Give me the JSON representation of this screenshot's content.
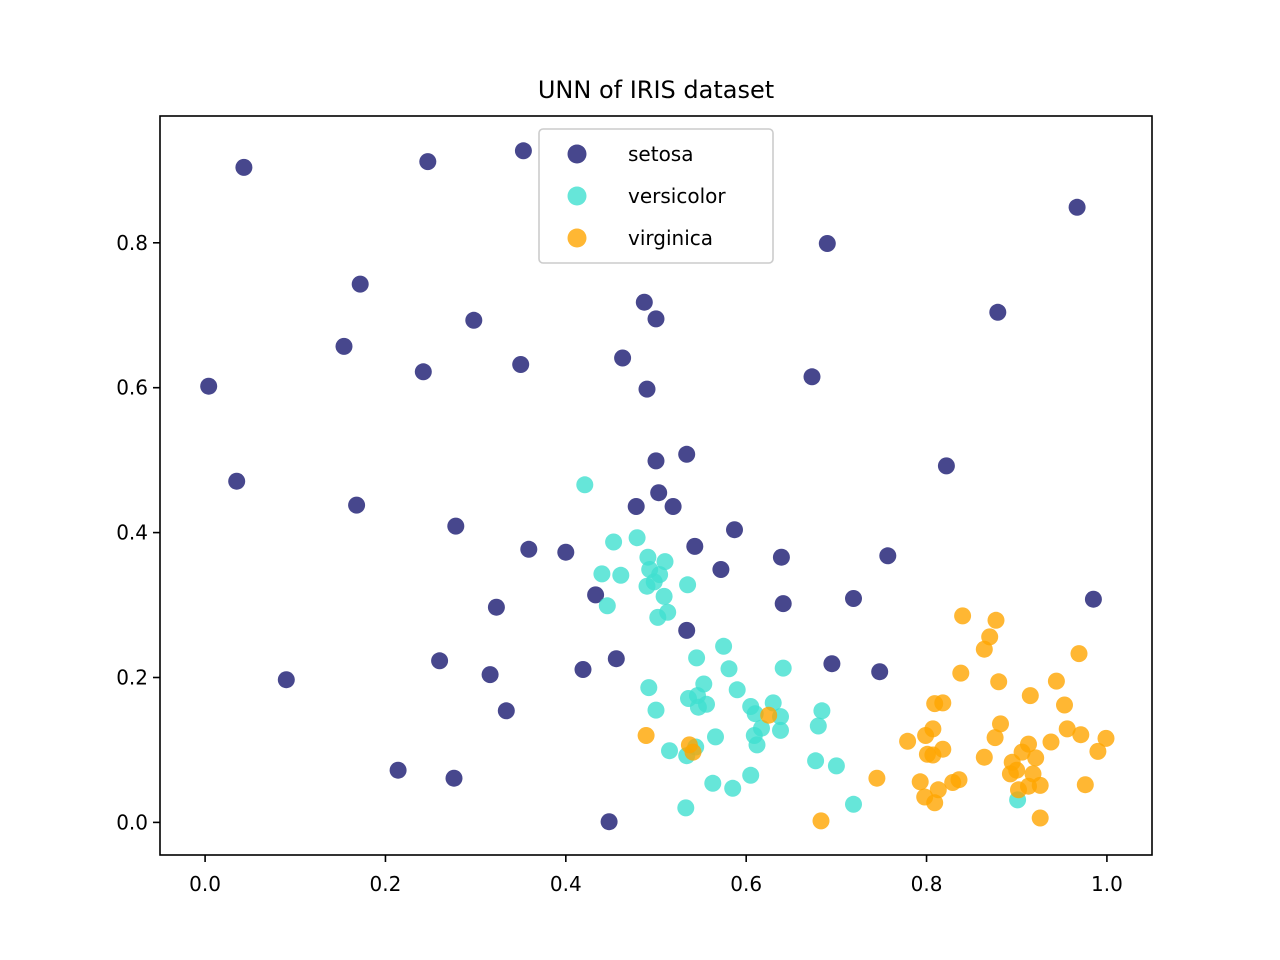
{
  "chart_data": {
    "type": "scatter",
    "title": "UNN of IRIS dataset",
    "xlabel": "",
    "ylabel": "",
    "xlim": [
      -0.05,
      1.05
    ],
    "ylim": [
      -0.045,
      0.975
    ],
    "xticks": [
      "0.0",
      "0.2",
      "0.4",
      "0.6",
      "0.8",
      "1.0"
    ],
    "yticks": [
      "0.0",
      "0.2",
      "0.4",
      "0.6",
      "0.8"
    ],
    "grid": false,
    "legend_position": "upper center",
    "series": [
      {
        "name": "setosa",
        "color": "#191970",
        "points": [
          [
            0.043,
            0.904
          ],
          [
            0.247,
            0.912
          ],
          [
            0.353,
            0.927
          ],
          [
            0.967,
            0.849
          ],
          [
            0.69,
            0.799
          ],
          [
            0.172,
            0.743
          ],
          [
            0.487,
            0.718
          ],
          [
            0.879,
            0.704
          ],
          [
            0.298,
            0.693
          ],
          [
            0.5,
            0.695
          ],
          [
            0.154,
            0.657
          ],
          [
            0.463,
            0.641
          ],
          [
            0.35,
            0.632
          ],
          [
            0.242,
            0.622
          ],
          [
            0.673,
            0.615
          ],
          [
            0.004,
            0.602
          ],
          [
            0.49,
            0.598
          ],
          [
            0.534,
            0.508
          ],
          [
            0.5,
            0.499
          ],
          [
            0.822,
            0.492
          ],
          [
            0.035,
            0.471
          ],
          [
            0.503,
            0.455
          ],
          [
            0.168,
            0.438
          ],
          [
            0.478,
            0.436
          ],
          [
            0.519,
            0.436
          ],
          [
            0.278,
            0.409
          ],
          [
            0.587,
            0.404
          ],
          [
            0.359,
            0.377
          ],
          [
            0.4,
            0.373
          ],
          [
            0.543,
            0.381
          ],
          [
            0.639,
            0.366
          ],
          [
            0.757,
            0.368
          ],
          [
            0.572,
            0.349
          ],
          [
            0.433,
            0.314
          ],
          [
            0.323,
            0.297
          ],
          [
            0.641,
            0.302
          ],
          [
            0.719,
            0.309
          ],
          [
            0.985,
            0.308
          ],
          [
            0.534,
            0.265
          ],
          [
            0.26,
            0.223
          ],
          [
            0.456,
            0.226
          ],
          [
            0.419,
            0.211
          ],
          [
            0.695,
            0.219
          ],
          [
            0.748,
            0.208
          ],
          [
            0.316,
            0.204
          ],
          [
            0.09,
            0.197
          ],
          [
            0.334,
            0.154
          ],
          [
            0.214,
            0.072
          ],
          [
            0.276,
            0.061
          ],
          [
            0.448,
            0.001
          ]
        ]
      },
      {
        "name": "versicolor",
        "color": "#40E0D0",
        "points": [
          [
            0.421,
            0.466
          ],
          [
            0.453,
            0.387
          ],
          [
            0.479,
            0.393
          ],
          [
            0.491,
            0.366
          ],
          [
            0.51,
            0.36
          ],
          [
            0.44,
            0.343
          ],
          [
            0.461,
            0.341
          ],
          [
            0.493,
            0.349
          ],
          [
            0.504,
            0.342
          ],
          [
            0.498,
            0.332
          ],
          [
            0.49,
            0.326
          ],
          [
            0.535,
            0.328
          ],
          [
            0.509,
            0.312
          ],
          [
            0.446,
            0.299
          ],
          [
            0.513,
            0.29
          ],
          [
            0.502,
            0.283
          ],
          [
            0.575,
            0.243
          ],
          [
            0.545,
            0.227
          ],
          [
            0.581,
            0.212
          ],
          [
            0.641,
            0.213
          ],
          [
            0.492,
            0.186
          ],
          [
            0.553,
            0.191
          ],
          [
            0.536,
            0.171
          ],
          [
            0.546,
            0.175
          ],
          [
            0.59,
            0.183
          ],
          [
            0.605,
            0.16
          ],
          [
            0.63,
            0.165
          ],
          [
            0.547,
            0.159
          ],
          [
            0.556,
            0.163
          ],
          [
            0.5,
            0.155
          ],
          [
            0.684,
            0.154
          ],
          [
            0.638,
            0.146
          ],
          [
            0.61,
            0.15
          ],
          [
            0.68,
            0.133
          ],
          [
            0.617,
            0.13
          ],
          [
            0.638,
            0.127
          ],
          [
            0.566,
            0.118
          ],
          [
            0.609,
            0.12
          ],
          [
            0.612,
            0.107
          ],
          [
            0.515,
            0.099
          ],
          [
            0.534,
            0.092
          ],
          [
            0.677,
            0.085
          ],
          [
            0.7,
            0.078
          ],
          [
            0.605,
            0.065
          ],
          [
            0.563,
            0.054
          ],
          [
            0.585,
            0.047
          ],
          [
            0.719,
            0.025
          ],
          [
            0.533,
            0.02
          ],
          [
            0.901,
            0.031
          ],
          [
            0.544,
            0.104
          ]
        ]
      },
      {
        "name": "virginica",
        "color": "#FFA500",
        "points": [
          [
            0.84,
            0.285
          ],
          [
            0.877,
            0.279
          ],
          [
            0.87,
            0.256
          ],
          [
            0.864,
            0.239
          ],
          [
            0.838,
            0.206
          ],
          [
            0.969,
            0.233
          ],
          [
            0.88,
            0.194
          ],
          [
            0.944,
            0.195
          ],
          [
            0.915,
            0.175
          ],
          [
            0.809,
            0.164
          ],
          [
            0.818,
            0.165
          ],
          [
            0.953,
            0.162
          ],
          [
            0.807,
            0.129
          ],
          [
            0.882,
            0.136
          ],
          [
            0.956,
            0.129
          ],
          [
            0.971,
            0.121
          ],
          [
            0.999,
            0.116
          ],
          [
            0.779,
            0.112
          ],
          [
            0.799,
            0.12
          ],
          [
            0.876,
            0.117
          ],
          [
            0.938,
            0.111
          ],
          [
            0.913,
            0.108
          ],
          [
            0.906,
            0.097
          ],
          [
            0.99,
            0.098
          ],
          [
            0.807,
            0.093
          ],
          [
            0.818,
            0.101
          ],
          [
            0.921,
            0.089
          ],
          [
            0.864,
            0.09
          ],
          [
            0.895,
            0.083
          ],
          [
            0.9,
            0.072
          ],
          [
            0.918,
            0.067
          ],
          [
            0.893,
            0.067
          ],
          [
            0.745,
            0.061
          ],
          [
            0.793,
            0.056
          ],
          [
            0.836,
            0.059
          ],
          [
            0.829,
            0.055
          ],
          [
            0.913,
            0.05
          ],
          [
            0.926,
            0.051
          ],
          [
            0.976,
            0.052
          ],
          [
            0.902,
            0.045
          ],
          [
            0.813,
            0.045
          ],
          [
            0.798,
            0.035
          ],
          [
            0.809,
            0.027
          ],
          [
            0.926,
            0.006
          ],
          [
            0.683,
            0.002
          ],
          [
            0.625,
            0.148
          ],
          [
            0.489,
            0.12
          ],
          [
            0.537,
            0.107
          ],
          [
            0.541,
            0.097
          ],
          [
            0.801,
            0.094
          ]
        ]
      }
    ]
  }
}
